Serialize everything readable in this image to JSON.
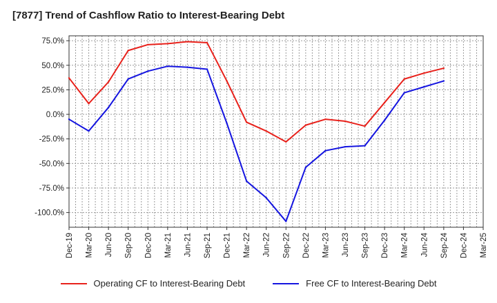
{
  "title": "[7877]  Trend of Cashflow Ratio to Interest-Bearing Debt",
  "chart_data": {
    "type": "line",
    "title": "[7877]  Trend of Cashflow Ratio to Interest-Bearing Debt",
    "xlabel": "",
    "ylabel": "",
    "x": [
      "Dec-19",
      "Mar-20",
      "Jun-20",
      "Sep-20",
      "Dec-20",
      "Mar-21",
      "Jun-21",
      "Sep-21",
      "Dec-21",
      "Mar-22",
      "Jun-22",
      "Sep-22",
      "Dec-22",
      "Mar-23",
      "Jun-23",
      "Sep-23",
      "Dec-23",
      "Mar-24",
      "Jun-24",
      "Sep-24",
      "Dec-24",
      "Mar-25"
    ],
    "y_ticks": [
      75,
      50,
      25,
      0,
      -25,
      -50,
      -75,
      -100
    ],
    "y_tick_labels": [
      "75.0%",
      "50.0%",
      "25.0%",
      "0.0%",
      "-25.0%",
      "-50.0%",
      "-75.0%",
      "-100.0%"
    ],
    "ylim": [
      -115,
      80
    ],
    "grid": true,
    "legend_position": "bottom",
    "series": [
      {
        "name": "Operating CF to Interest-Bearing Debt",
        "color": "#e8201a",
        "values": [
          37,
          11,
          33,
          65,
          71,
          72,
          74,
          73,
          34,
          -8,
          -17,
          -28,
          -11,
          -5,
          -7,
          -12,
          12,
          36,
          42,
          47,
          null,
          null
        ]
      },
      {
        "name": "Free CF to Interest-Bearing Debt",
        "color": "#1414e0",
        "values": [
          -5,
          -17,
          7,
          36,
          44,
          49,
          48,
          46,
          -9,
          -68,
          -85,
          -109,
          -54,
          -37,
          -33,
          -32,
          -6,
          22,
          28,
          34,
          null,
          null
        ]
      }
    ]
  }
}
